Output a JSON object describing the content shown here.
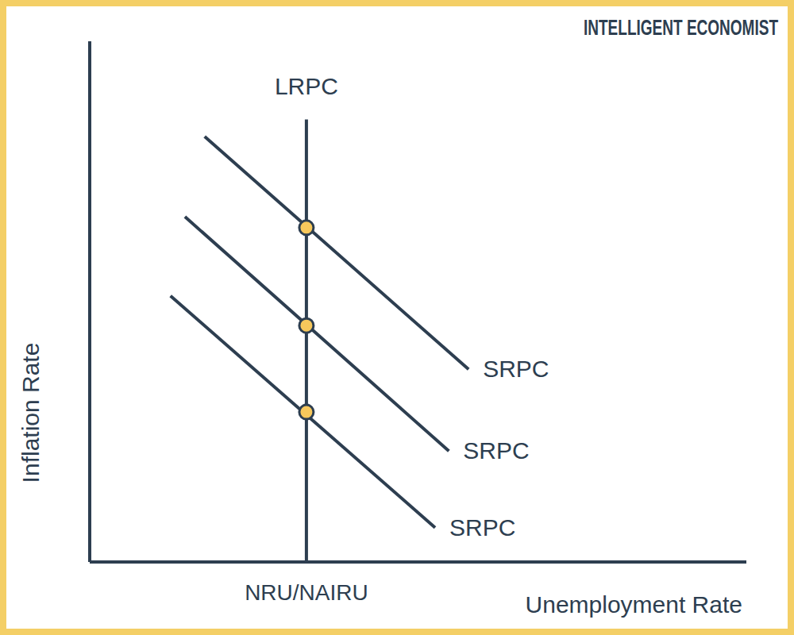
{
  "chart_data": {
    "type": "line",
    "watermark": "INTELLIGENT ECONOMIST",
    "x_label": "Unemployment Rate",
    "y_label": "Inflation Rate",
    "xlim": [
      0,
      10
    ],
    "ylim": [
      0,
      10
    ],
    "xticks": [
      {
        "value": 3.3,
        "label": "NRU/NAIRU"
      }
    ],
    "yticks": [],
    "tick_labels": "x",
    "grid": false,
    "series": [
      {
        "name": "LRPC",
        "color": "#2d3e50",
        "x": [
          3.3,
          3.3
        ],
        "values": [
          0,
          8.5
        ]
      },
      {
        "name": "SRPC",
        "color": "#2d3e50",
        "x": [
          1.75,
          5.77
        ],
        "values": [
          8.17,
          3.7
        ]
      },
      {
        "name": "SRPC",
        "color": "#2d3e50",
        "x": [
          1.45,
          5.47
        ],
        "values": [
          6.63,
          2.13
        ]
      },
      {
        "name": "SRPC",
        "color": "#2d3e50",
        "x": [
          1.23,
          5.26
        ],
        "values": [
          5.11,
          0.66
        ]
      }
    ],
    "points": {
      "x": [
        3.3,
        3.3,
        3.3
      ],
      "values": [
        6.42,
        4.54,
        2.88
      ],
      "color": "#f7c85c",
      "marker": "circle"
    }
  }
}
